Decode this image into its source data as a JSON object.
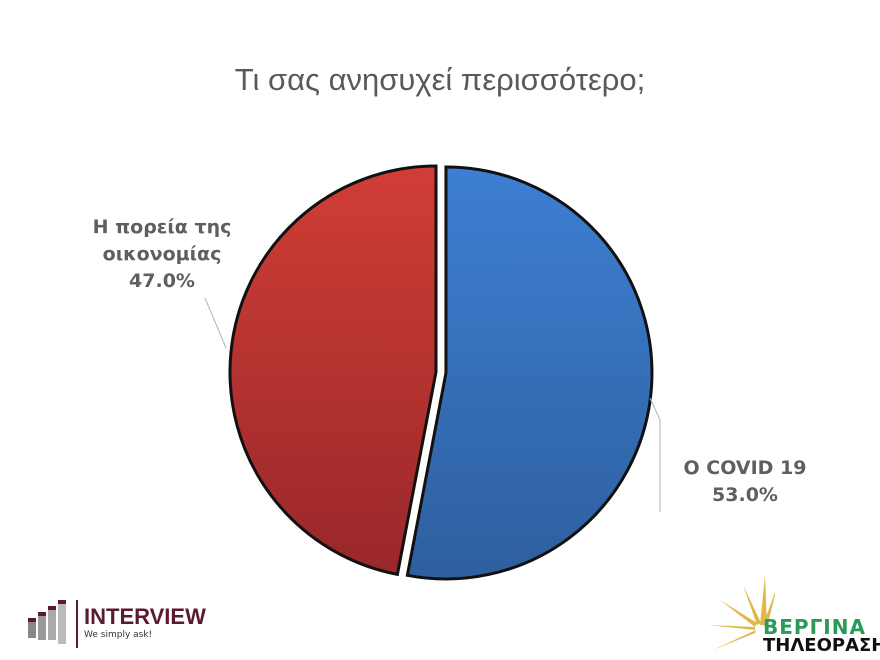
{
  "chart_data": {
    "type": "pie",
    "title": "Τι σας ανησυχεί περισσότερο;",
    "slices": [
      {
        "label": "Ο COVID 19",
        "value": 53.0,
        "value_label": "53.0%",
        "color": "#3a78c8",
        "exploded": true
      },
      {
        "label": "Η πορεία της οικονομίας",
        "value": 47.0,
        "value_label": "47.0%",
        "color": "#c0392f",
        "exploded": false
      }
    ],
    "start_angle": "top, clockwise",
    "legend": "none"
  },
  "logos": {
    "left": {
      "name": "INTERVIEW",
      "tagline": "We simply ask!"
    },
    "right": {
      "name": "ΒΕΡΓΙΝΑ",
      "subtitle": "ΤΗΛΕΟΡΑΣΗ"
    }
  }
}
